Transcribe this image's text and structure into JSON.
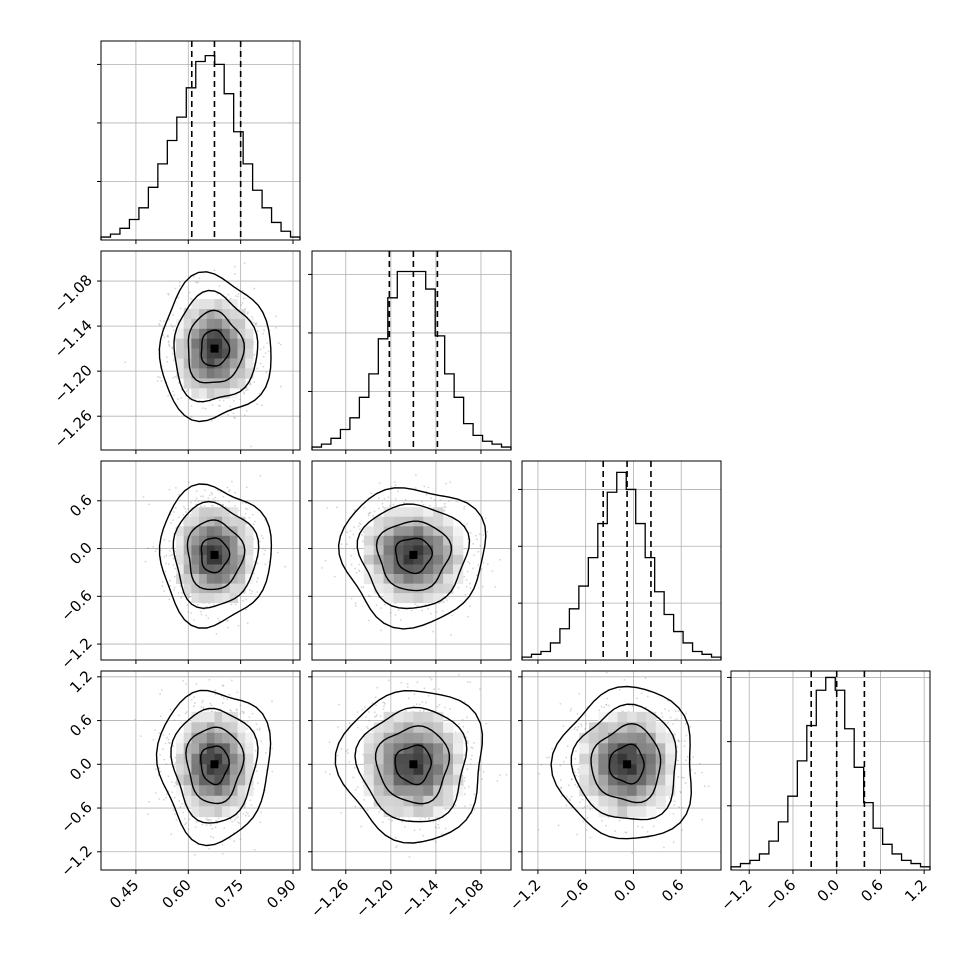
{
  "chart_data": {
    "type": "corner",
    "grid": true,
    "params": [
      {
        "range": [
          0.35,
          0.92
        ],
        "ticks": [
          0.45,
          0.6,
          0.75,
          0.9
        ],
        "tick_labels": [
          "0.45",
          "0.60",
          "0.75",
          "0.90"
        ],
        "hist": {
          "range": [
            0.35,
            0.92
          ],
          "counts": [
            1,
            2,
            4,
            7,
            11,
            18,
            26,
            34,
            42,
            52,
            61,
            63,
            60,
            50,
            37,
            26,
            17,
            11,
            6,
            3,
            1
          ],
          "ymax": 68
        },
        "quantiles": [
          0.61,
          0.675,
          0.75
        ]
      },
      {
        "range": [
          -1.305,
          -1.04
        ],
        "ticks": [
          -1.26,
          -1.2,
          -1.14,
          -1.08
        ],
        "tick_labels": [
          "−1.26",
          "−1.20",
          "−1.14",
          "−1.08"
        ],
        "hist": {
          "range": [
            -1.305,
            -1.04
          ],
          "counts": [
            1,
            2,
            4,
            7,
            11,
            18,
            26,
            38,
            52,
            61,
            61,
            61,
            55,
            39,
            26,
            18,
            9,
            5,
            3,
            2,
            1
          ],
          "ymax": 68
        },
        "quantiles": [
          -1.202,
          -1.17,
          -1.138
        ]
      },
      {
        "range": [
          -1.4,
          1.1
        ],
        "ticks": [
          -1.2,
          -0.6,
          0.0,
          0.6
        ],
        "tick_labels": [
          "−1.2",
          "−0.6",
          "0.0",
          "0.6"
        ],
        "hist": {
          "range": [
            -1.4,
            1.1
          ],
          "counts": [
            1,
            2,
            3,
            6,
            11,
            18,
            26,
            36,
            48,
            59,
            66,
            60,
            48,
            36,
            24,
            16,
            10,
            6,
            3,
            2,
            1
          ],
          "ymax": 70
        },
        "quantiles": [
          -0.38,
          -0.08,
          0.22
        ]
      },
      {
        "range": [
          -1.45,
          1.28
        ],
        "ticks": [
          -1.2,
          -0.6,
          0.0,
          0.6,
          1.2
        ],
        "tick_labels": [
          "−1.2",
          "−0.6",
          "0.0",
          "0.6",
          "1.2"
        ],
        "hist": {
          "range": [
            -1.45,
            1.28
          ],
          "counts": [
            1,
            2,
            3,
            5,
            9,
            15,
            23,
            34,
            45,
            56,
            60,
            56,
            44,
            32,
            21,
            13,
            8,
            5,
            3,
            2,
            1
          ],
          "ymax": 62
        },
        "quantiles": [
          -0.35,
          0.0,
          0.38
        ]
      }
    ],
    "pair_ticks": {
      "y1": {
        "ticks": [
          -1.26,
          -1.2,
          -1.14,
          -1.08
        ],
        "labels": [
          "−1.26",
          "−1.20",
          "−1.14",
          "−1.08"
        ]
      },
      "y2": {
        "ticks": [
          -1.2,
          -0.6,
          0.0,
          0.6
        ],
        "labels": [
          "−1.2",
          "−0.6",
          "0.0",
          "0.6"
        ]
      },
      "y3": {
        "ticks": [
          -1.2,
          -0.6,
          0.0,
          0.6,
          1.2
        ],
        "labels": [
          "−1.2",
          "−0.6",
          "0.0",
          "0.6",
          "1.2"
        ]
      }
    },
    "pair_stats": {
      "1,0": {
        "mean_x": 0.675,
        "mean_y": -1.17,
        "sd_x": 0.055,
        "sd_y": 0.033
      },
      "2,0": {
        "mean_x": 0.675,
        "mean_y": -0.08,
        "sd_x": 0.055,
        "sd_y": 0.3
      },
      "2,1": {
        "mean_x": -1.17,
        "mean_y": -0.08,
        "sd_x": 0.033,
        "sd_y": 0.3
      },
      "3,0": {
        "mean_x": 0.675,
        "mean_y": 0.0,
        "sd_x": 0.055,
        "sd_y": 0.36
      },
      "3,1": {
        "mean_x": -1.17,
        "mean_y": 0.0,
        "sd_x": 0.033,
        "sd_y": 0.36
      },
      "3,2": {
        "mean_x": -0.08,
        "mean_y": 0.0,
        "sd_x": 0.3,
        "sd_y": 0.36
      }
    },
    "contour_levels_sigma": [
      0.5,
      1.0,
      1.5,
      2.0
    ],
    "colors": {
      "axis": "#000000",
      "grid": "#b0b0b0",
      "points": "#888888",
      "contour": "#000000"
    }
  }
}
